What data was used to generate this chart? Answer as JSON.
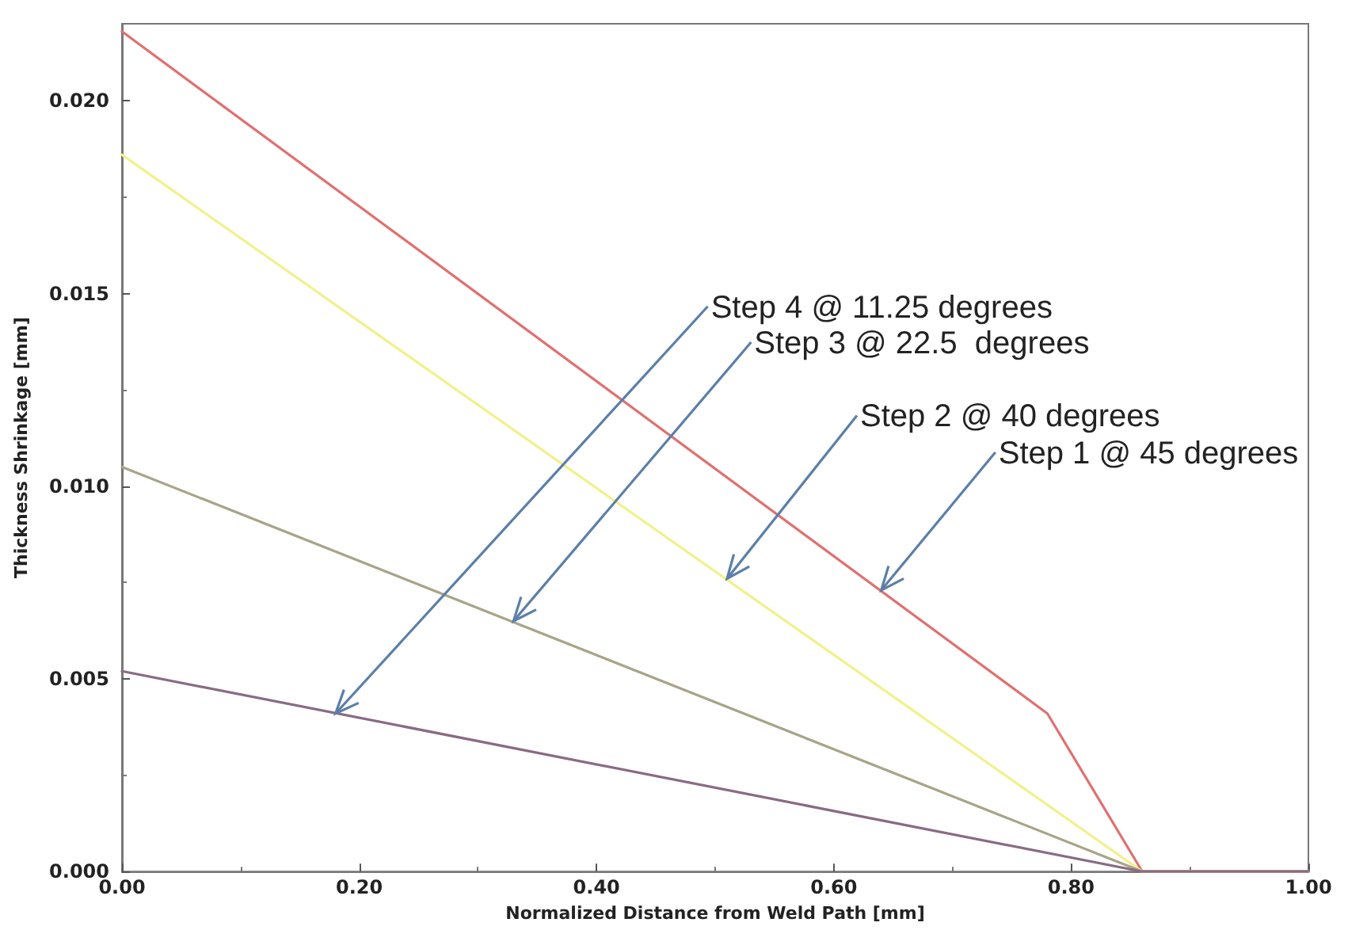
{
  "chart_data": {
    "type": "line",
    "xlabel": "Normalized Distance from Weld Path [mm]",
    "ylabel": "Thickness Shrinkage [mm]",
    "xlim": [
      0,
      1
    ],
    "ylim": [
      0,
      0.022
    ],
    "xticks": [
      {
        "value": 0,
        "label": "0.00"
      },
      {
        "value": 0.2,
        "label": "0.20"
      },
      {
        "value": 0.4,
        "label": "0.40"
      },
      {
        "value": 0.6,
        "label": "0.60"
      },
      {
        "value": 0.8,
        "label": "0.80"
      },
      {
        "value": 1,
        "label": "1.00"
      }
    ],
    "yticks": [
      {
        "value": 0,
        "label": "0.000"
      },
      {
        "value": 0.005,
        "label": "0.005"
      },
      {
        "value": 0.01,
        "label": "0.010"
      },
      {
        "value": 0.015,
        "label": "0.015"
      },
      {
        "value": 0.02,
        "label": "0.020"
      }
    ],
    "grid": false,
    "marker": "none",
    "line_style": "solid",
    "series": [
      {
        "color": "#e07070",
        "x": [
          0,
          0.78,
          0.86,
          1
        ],
        "values": [
          0.0218,
          0.0041,
          0,
          0
        ]
      },
      {
        "color": "#f2f08a",
        "x": [
          0,
          0.86,
          1
        ],
        "values": [
          0.0186,
          0,
          0
        ]
      },
      {
        "color": "#a8a488",
        "x": [
          0,
          0.86,
          1
        ],
        "values": [
          0.0105,
          0,
          0
        ]
      },
      {
        "color": "#8a6a84",
        "x": [
          0,
          0.86,
          1
        ],
        "values": [
          0.0052,
          0,
          0
        ]
      }
    ],
    "annotations": [
      {
        "text": "Step 4 @ 11.25 degrees",
        "x": 0.18,
        "y": 0.0041
      },
      {
        "text": "Step 3 @ 22.5  degrees",
        "x": 0.33,
        "y": 0.0065
      },
      {
        "text": "Step 2 @ 40 degrees",
        "x": 0.51,
        "y": 0.0076
      },
      {
        "text": "Step 1 @ 45 degrees",
        "x": 0.64,
        "y": 0.0073
      }
    ]
  }
}
